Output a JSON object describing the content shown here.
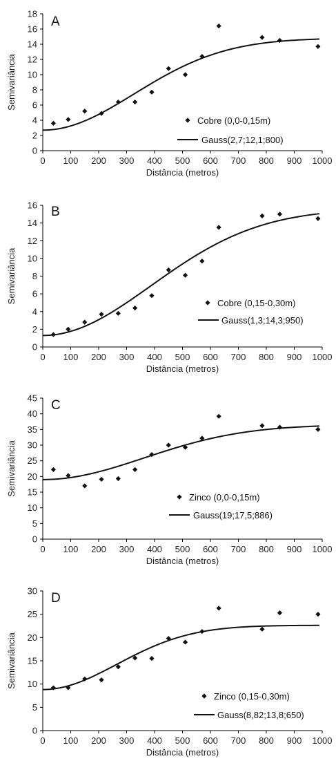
{
  "chart_data": [
    {
      "type": "scatter",
      "panel": "A",
      "xlabel": "Distância (metros)",
      "ylabel": "Semivariância",
      "xlim": [
        0,
        1000
      ],
      "ylim": [
        0,
        18
      ],
      "xticks": [
        0,
        100,
        200,
        300,
        400,
        500,
        600,
        700,
        800,
        900,
        1000
      ],
      "yticks": [
        0,
        2,
        4,
        6,
        8,
        10,
        12,
        14,
        16,
        18
      ],
      "grid": false,
      "legend_position": "right",
      "series": [
        {
          "name": "Cobre (0,0-0,15m)",
          "kind": "points",
          "marker": "diamond",
          "x": [
            38,
            91,
            150,
            210,
            270,
            330,
            390,
            450,
            510,
            570,
            630,
            785,
            848,
            985
          ],
          "y": [
            3.6,
            4.1,
            5.2,
            4.9,
            6.4,
            6.4,
            7.7,
            10.8,
            10.0,
            12.4,
            16.4,
            14.9,
            14.5,
            13.7
          ]
        },
        {
          "name": "Gauss(2,7;12,1;800)",
          "kind": "model",
          "model": "gaussian",
          "nugget": 2.7,
          "contribution": 12.1,
          "range": 800,
          "x_domain": [
            0,
            990
          ]
        }
      ]
    },
    {
      "type": "scatter",
      "panel": "B",
      "xlabel": "Distância (metros)",
      "ylabel": "Semivariância",
      "xlim": [
        0,
        1000
      ],
      "ylim": [
        0,
        16
      ],
      "xticks": [
        0,
        100,
        200,
        300,
        400,
        500,
        600,
        700,
        800,
        900,
        1000
      ],
      "yticks": [
        0,
        2,
        4,
        6,
        8,
        10,
        12,
        14,
        16
      ],
      "grid": false,
      "legend_position": "right",
      "series": [
        {
          "name": "Cobre (0,15-0,30m)",
          "kind": "points",
          "marker": "diamond",
          "x": [
            38,
            91,
            150,
            210,
            270,
            330,
            390,
            450,
            510,
            570,
            630,
            785,
            848,
            985
          ],
          "y": [
            1.4,
            2.0,
            2.8,
            3.7,
            3.8,
            4.4,
            5.8,
            8.7,
            8.1,
            9.7,
            13.5,
            14.8,
            15.0,
            14.5
          ]
        },
        {
          "name": "Gauss(1,3;14,3;950)",
          "kind": "model",
          "model": "gaussian",
          "nugget": 1.3,
          "contribution": 14.3,
          "range": 950,
          "x_domain": [
            0,
            990
          ]
        }
      ]
    },
    {
      "type": "scatter",
      "panel": "C",
      "xlabel": "Distância (metros)",
      "ylabel": "Semivariância",
      "xlim": [
        0,
        1000
      ],
      "ylim": [
        0,
        45
      ],
      "xticks": [
        0,
        100,
        200,
        300,
        400,
        500,
        600,
        700,
        800,
        900,
        1000
      ],
      "yticks": [
        0,
        5,
        10,
        15,
        20,
        25,
        30,
        35,
        40,
        45
      ],
      "grid": false,
      "legend_position": "right",
      "series": [
        {
          "name": "Zinco (0,0-0,15m)",
          "kind": "points",
          "marker": "diamond",
          "x": [
            38,
            91,
            150,
            210,
            270,
            330,
            390,
            450,
            510,
            570,
            630,
            785,
            848,
            985
          ],
          "y": [
            22.2,
            20.3,
            17.0,
            19.1,
            19.3,
            22.2,
            27.0,
            30.0,
            29.3,
            32.2,
            39.2,
            36.2,
            35.7,
            35.0
          ]
        },
        {
          "name": "Gauss(19;17,5;886)",
          "kind": "model",
          "model": "gaussian",
          "nugget": 19,
          "contribution": 17.5,
          "range": 886,
          "x_domain": [
            0,
            990
          ]
        }
      ]
    },
    {
      "type": "scatter",
      "panel": "D",
      "xlabel": "Distância (metros)",
      "ylabel": "Semivariância",
      "xlim": [
        0,
        1000
      ],
      "ylim": [
        0,
        30
      ],
      "xticks": [
        0,
        100,
        200,
        300,
        400,
        500,
        600,
        700,
        800,
        900,
        1000
      ],
      "yticks": [
        0,
        5,
        10,
        15,
        20,
        25,
        30
      ],
      "grid": false,
      "legend_position": "right",
      "series": [
        {
          "name": "Zinco (0,15-0,30m)",
          "kind": "points",
          "marker": "diamond",
          "x": [
            38,
            91,
            150,
            210,
            270,
            330,
            390,
            450,
            510,
            570,
            630,
            785,
            848,
            985
          ],
          "y": [
            9.2,
            9.2,
            11.1,
            10.9,
            13.7,
            15.6,
            15.5,
            19.8,
            19.0,
            21.3,
            26.3,
            21.8,
            25.3,
            25.0
          ]
        },
        {
          "name": "Gauss(8,82;13,8;650)",
          "kind": "model",
          "model": "gaussian",
          "nugget": 8.82,
          "contribution": 13.8,
          "range": 650,
          "x_domain": [
            0,
            990
          ]
        }
      ]
    }
  ]
}
